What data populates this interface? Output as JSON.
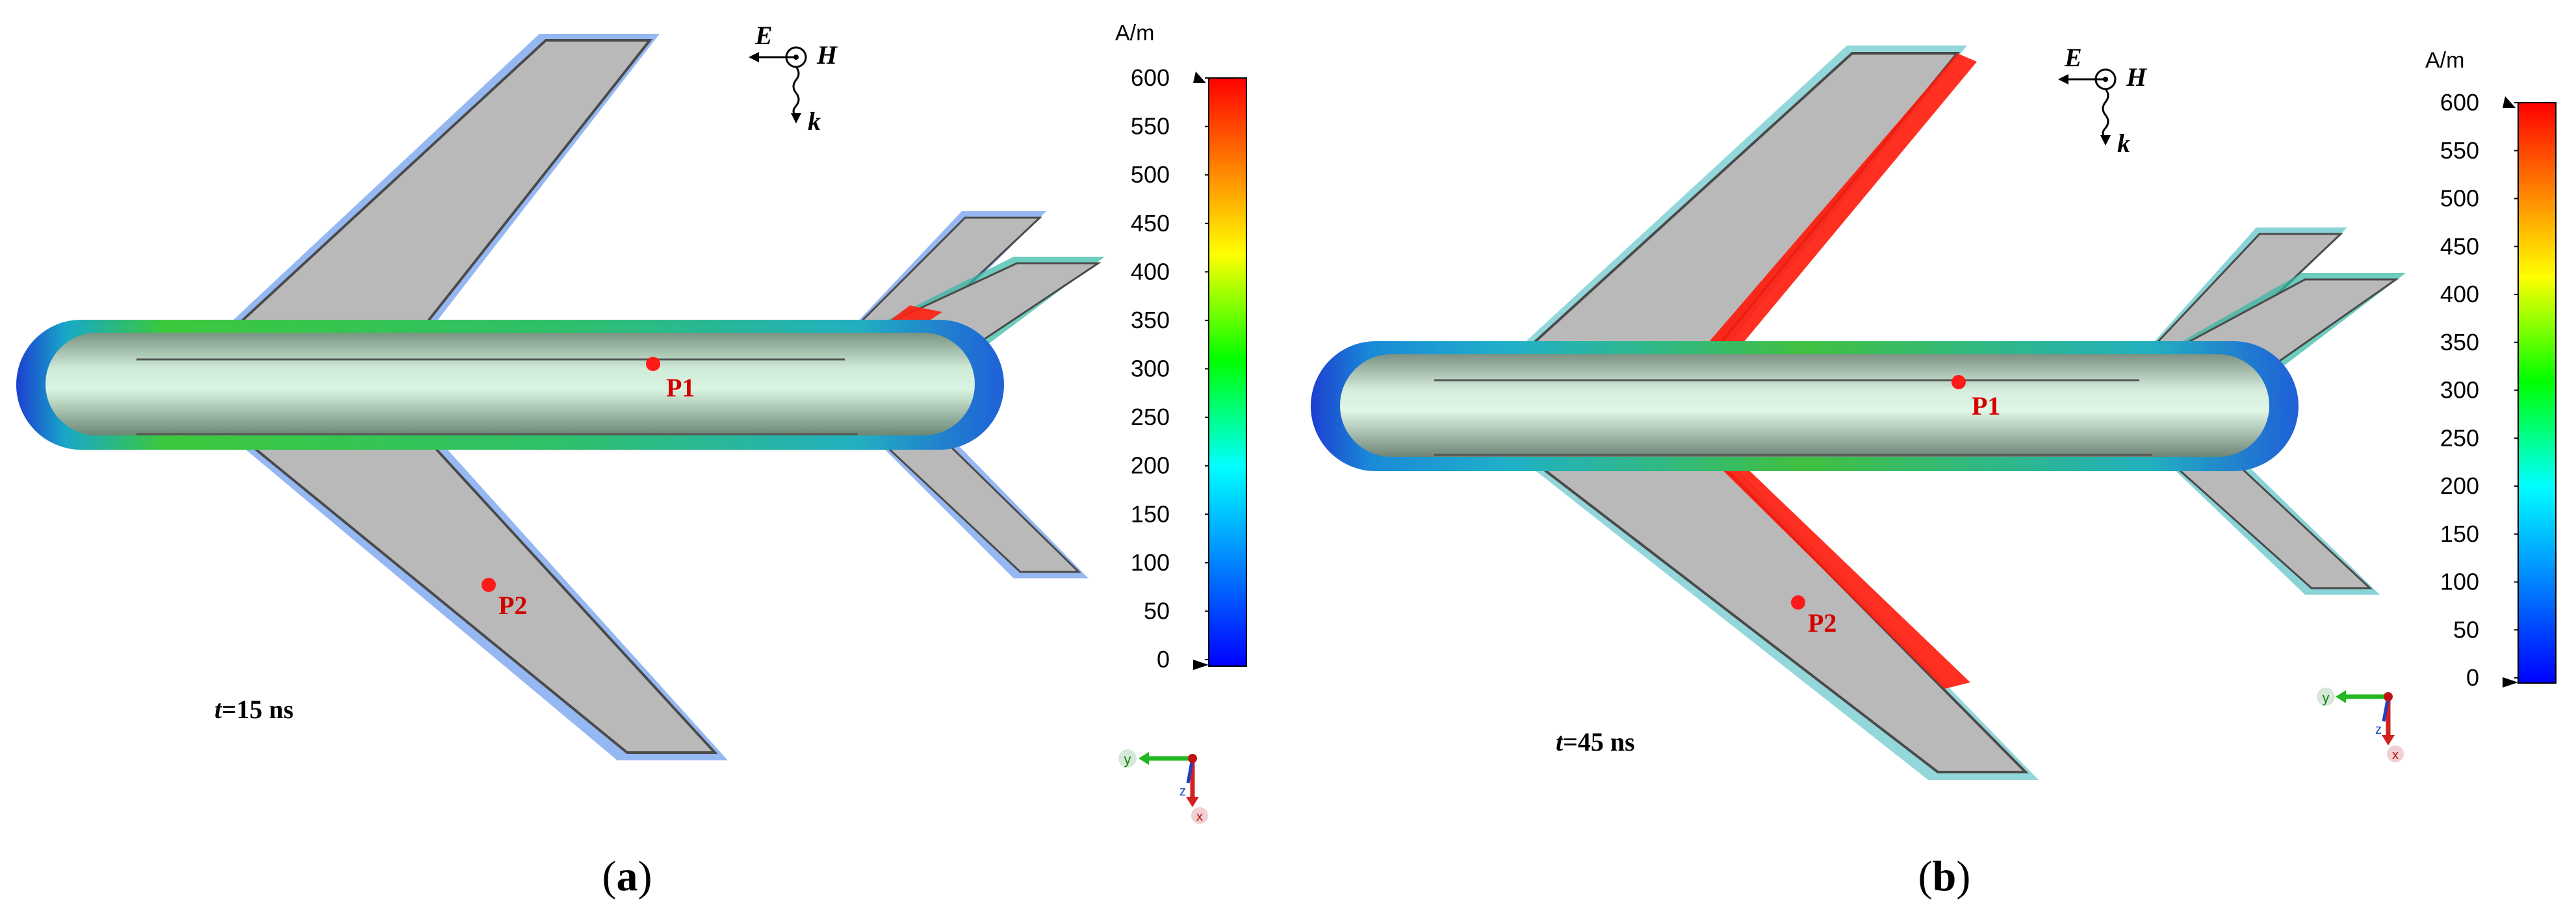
{
  "panels": [
    {
      "caption": "(a)",
      "caption_letter": "a",
      "time_label_t": "t",
      "time_label_rest": "=15 ns",
      "point1": "P1",
      "point2": "P2",
      "field_e": "E",
      "field_h": "H",
      "field_k": "k",
      "axis_y": "y",
      "axis_z": "z",
      "axis_x": "x",
      "highlight": "tail"
    },
    {
      "caption": "(b)",
      "caption_letter": "b",
      "time_label_t": "t",
      "time_label_rest": "=45 ns",
      "point1": "P1",
      "point2": "P2",
      "field_e": "E",
      "field_h": "H",
      "field_k": "k",
      "axis_y": "y",
      "axis_z": "z",
      "axis_x": "x",
      "highlight": "wings"
    }
  ],
  "colorbar": {
    "unit": "A/m",
    "ticks": [
      "600",
      "550",
      "500",
      "450",
      "400",
      "350",
      "300",
      "250",
      "200",
      "150",
      "100",
      "50",
      "0"
    ],
    "min": 0,
    "max": 600,
    "colors": [
      "#0000ff",
      "#0080ff",
      "#00ffff",
      "#00ff00",
      "#ffff00",
      "#ff8000",
      "#ff0000"
    ]
  }
}
